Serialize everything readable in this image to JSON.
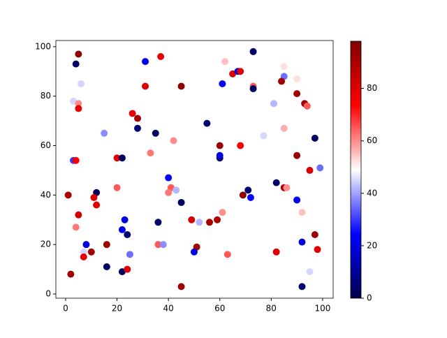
{
  "chart_data": {
    "type": "scatter",
    "colormap": "seismic",
    "x": [
      5,
      4,
      6,
      3,
      5,
      5,
      26,
      28,
      28,
      15,
      35,
      33,
      42,
      20,
      22,
      3,
      4,
      1,
      12,
      11,
      12,
      5,
      4,
      20,
      8,
      7,
      7,
      10,
      16,
      16,
      2,
      22,
      24,
      23,
      22,
      24,
      25,
      31,
      37,
      31,
      45,
      40,
      41,
      40,
      43,
      45,
      36,
      36,
      38,
      45,
      55,
      49,
      52,
      51,
      50,
      56,
      59,
      63,
      60,
      60,
      60,
      61,
      62,
      61,
      65,
      67,
      68,
      68,
      69,
      71,
      72,
      73,
      73,
      73,
      77,
      81,
      85,
      85,
      84,
      85,
      82,
      85,
      86,
      82,
      90,
      90,
      93,
      94,
      90,
      95,
      97,
      99,
      90,
      92,
      92,
      97,
      98,
      95,
      92
    ],
    "y": [
      97,
      93,
      85,
      78,
      77,
      75,
      73,
      71,
      67,
      65,
      65,
      57,
      62,
      55,
      55,
      54,
      54,
      40,
      41,
      39,
      36,
      32,
      27,
      43,
      20,
      17,
      15,
      17,
      20,
      11,
      8,
      9,
      10,
      30,
      26,
      24,
      16,
      94,
      96,
      84,
      84,
      47,
      43,
      41,
      42,
      37,
      29,
      20,
      20,
      3,
      69,
      30,
      29,
      19,
      17,
      29,
      30,
      16,
      55,
      56,
      60,
      33,
      94,
      85,
      89,
      90,
      90,
      60,
      40,
      42,
      39,
      98,
      84,
      83,
      64,
      77,
      92,
      88,
      86,
      67,
      45,
      43,
      43,
      17,
      87,
      81,
      77,
      76,
      56,
      50,
      63,
      51,
      38,
      33,
      21,
      24,
      18,
      9,
      3
    ],
    "c": [
      95,
      3,
      45,
      45,
      60,
      78,
      78,
      92,
      5,
      38,
      3,
      62,
      60,
      80,
      3,
      30,
      75,
      90,
      3,
      80,
      80,
      82,
      62,
      65,
      20,
      45,
      78,
      92,
      92,
      3,
      92,
      3,
      80,
      20,
      22,
      5,
      35,
      22,
      78,
      80,
      95,
      25,
      65,
      62,
      42,
      3,
      4,
      65,
      38,
      92,
      4,
      82,
      42,
      92,
      20,
      90,
      90,
      65,
      5,
      20,
      93,
      60,
      55,
      25,
      80,
      22,
      80,
      75,
      95,
      5,
      25,
      3,
      65,
      3,
      45,
      42,
      52,
      35,
      92,
      57,
      3,
      92,
      60,
      80,
      52,
      92,
      92,
      65,
      93,
      80,
      3,
      35,
      22,
      55,
      20,
      92,
      80,
      45,
      4
    ],
    "xlim": [
      -3.8,
      104.1
    ],
    "ylim": [
      -1.7,
      102.5
    ],
    "clim": [
      0,
      98
    ],
    "xticks": [
      0,
      20,
      40,
      60,
      80,
      100
    ],
    "yticks": [
      0,
      20,
      40,
      60,
      80,
      100
    ],
    "cticks": [
      0,
      20,
      40,
      60,
      80
    ]
  }
}
